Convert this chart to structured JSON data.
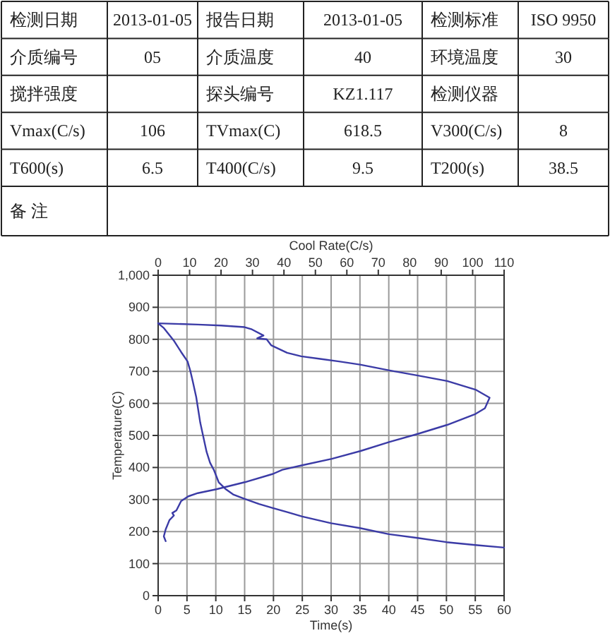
{
  "chart_data": [
    {
      "type": "other",
      "annotations": [
        "检测日期",
        "2013-01-05",
        "报告日期",
        "2013-01-05",
        "检测标准",
        "ISO 9950",
        "介质编号",
        "05",
        "介质温度",
        "40",
        "环境温度",
        "30",
        "搅拌强度",
        null,
        "探头编号",
        "KZ1.117",
        "检测仪器",
        null,
        "Vmax(C/s)",
        "106",
        "TVmax(C)",
        "618.5",
        "V300(C/s)",
        "8",
        "T600(s)",
        "6.5",
        "T400(C/s)",
        "9.5",
        "T200(s)",
        "38.5",
        "备 注"
      ]
    },
    {
      "type": "line",
      "xlabel": "Time(s)",
      "ylabel": "Temperature(C)",
      "x2label": "Cool Rate(C/s)",
      "xlim": [
        0,
        60
      ],
      "xticks": [
        0,
        5,
        10,
        15,
        20,
        25,
        30,
        35,
        40,
        45,
        50,
        55,
        60
      ],
      "x2lim": [
        0,
        110
      ],
      "x2ticks": [
        0,
        10,
        20,
        30,
        40,
        50,
        60,
        70,
        80,
        90,
        100,
        110
      ],
      "ylim": [
        0,
        1000
      ],
      "yticks": [
        0,
        100,
        200,
        300,
        400,
        500,
        600,
        700,
        800,
        900,
        {
          "value": 1000,
          "label": "1,000"
        }
      ],
      "grid": true,
      "series": [
        {
          "color": "#3b3ba6",
          "x": [
            0,
            1,
            2,
            2.8,
            4,
            5.1,
            5.6,
            6,
            6.6,
            7.3,
            8.4,
            9,
            9.7,
            10.5,
            11.75,
            13,
            15,
            17.5,
            20,
            22.5,
            25,
            30,
            35,
            40,
            45,
            50,
            55,
            60
          ],
          "values": [
            850,
            835,
            812,
            794,
            760,
            731,
            700,
            669,
            620,
            540,
            449,
            415,
            391,
            354,
            332,
            316,
            302,
            286,
            273,
            260,
            247,
            226,
            211,
            192,
            180,
            167,
            158,
            150
          ]
        },
        {
          "color": "#3b3ba6",
          "axis": "x2",
          "x": [
            0,
            12.6,
            20,
            27.5,
            29.8,
            33.5,
            31.5,
            34.5,
            36,
            41,
            45.5,
            51.5,
            57.5,
            64.2,
            73.6,
            82.6,
            91.9,
            100.9,
            105.4,
            103.9,
            100.9,
            91.9,
            82.6,
            73.6,
            64.2,
            55.2,
            45.8,
            39.5,
            36.5,
            27.5,
            18.5,
            12.6,
            9.6,
            7.3,
            5.8,
            4.5,
            5,
            3.6,
            2.4,
            1.8,
            2.4
          ],
          "values": [
            850,
            846,
            843,
            838,
            831,
            812,
            803,
            800,
            781,
            758,
            747,
            739,
            731,
            721,
            703,
            687,
            670,
            643,
            618,
            585,
            567,
            533,
            505,
            480,
            451,
            427,
            407,
            393,
            380,
            354,
            332,
            320,
            310,
            295,
            266,
            258,
            250,
            236,
            207,
            185,
            170
          ]
        }
      ]
    }
  ]
}
